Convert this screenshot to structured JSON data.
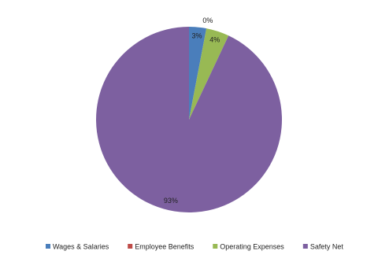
{
  "chart_data": {
    "type": "pie",
    "categories": [
      "Wages & Salaries",
      "Employee Benefits",
      "Operating Expenses",
      "Safety Net"
    ],
    "values": [
      3,
      0,
      4,
      93
    ],
    "value_labels": [
      "3%",
      "0%",
      "4%",
      "93%"
    ],
    "colors": [
      "#4a7ebb",
      "#be4b48",
      "#98b954",
      "#7d60a0"
    ],
    "legend": "bottom"
  }
}
